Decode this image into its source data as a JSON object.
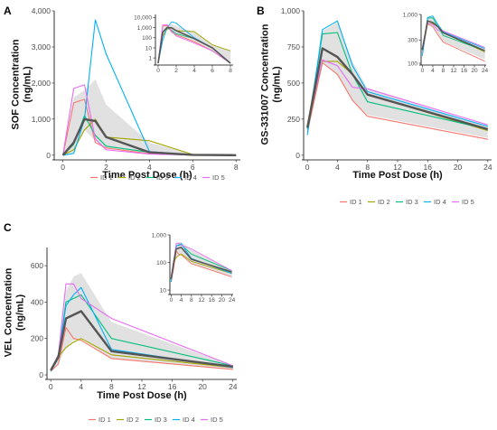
{
  "colors": {
    "ID 1": "#F8766D",
    "ID 2": "#A3A500",
    "ID 3": "#00BF7D",
    "ID 4": "#00B0F6",
    "ID 5": "#E76BF3",
    "median": "#555555",
    "band": "#d9d9d9"
  },
  "legend_entries": [
    "ID 1",
    "ID 2",
    "ID 3",
    "ID 4",
    "ID 5"
  ],
  "chart_data": [
    {
      "panel": "A",
      "type": "line",
      "xlabel": "Time Post Dose (h)",
      "ylabel": "SOF Concentration\n(ng/mL)",
      "xlim": [
        -0.4,
        8.2
      ],
      "ylim": [
        -80,
        4000
      ],
      "xticks": [
        "0",
        "2",
        "4",
        "6",
        "8"
      ],
      "yticks": [
        "0",
        "1,000",
        "2,000",
        "3,000",
        "4,000"
      ],
      "grid": false,
      "legend": "bottom",
      "series": [
        {
          "name": "ID 1",
          "x": [
            0,
            0.5,
            1,
            1.5,
            2,
            4,
            6,
            8
          ],
          "y": [
            0,
            1450,
            1550,
            350,
            200,
            40,
            5,
            0
          ]
        },
        {
          "name": "ID 2",
          "x": [
            0,
            0.5,
            1,
            1.5,
            2,
            4,
            6,
            8
          ],
          "y": [
            0,
            150,
            700,
            1000,
            500,
            400,
            20,
            5
          ]
        },
        {
          "name": "ID 3",
          "x": [
            0,
            0.5,
            1,
            1.5,
            2,
            4,
            6,
            8
          ],
          "y": [
            0,
            300,
            1100,
            550,
            250,
            80,
            10,
            0
          ]
        },
        {
          "name": "ID 4",
          "x": [
            0,
            0.5,
            1,
            1.5,
            2,
            4,
            6,
            8
          ],
          "y": [
            0,
            50,
            1000,
            3750,
            2800,
            100,
            10,
            0
          ]
        },
        {
          "name": "ID 5",
          "x": [
            0,
            0.5,
            1,
            1.5,
            2,
            4,
            6,
            8
          ],
          "y": [
            0,
            1850,
            1950,
            450,
            150,
            30,
            5,
            0
          ]
        }
      ],
      "median": {
        "x": [
          0,
          0.5,
          1,
          1.5,
          2,
          4,
          6,
          8
        ],
        "y": [
          0,
          350,
          1000,
          950,
          500,
          80,
          10,
          0
        ]
      },
      "band": {
        "x": [
          0,
          0.5,
          1,
          1.5,
          2,
          4,
          6,
          8
        ],
        "lo": [
          0,
          80,
          700,
          400,
          200,
          40,
          5,
          0
        ],
        "hi": [
          0,
          1600,
          1800,
          2100,
          1400,
          350,
          20,
          5
        ]
      },
      "inset": {
        "xlim": [
          -0.3,
          8.3
        ],
        "ylog": true,
        "ylim": [
          0.3,
          20000
        ],
        "xticks": [
          "0",
          "2",
          "4",
          "6",
          "8"
        ],
        "yticks": [
          "1",
          "10",
          "100",
          "1,000",
          "10,000"
        ],
        "ytick_values": [
          1,
          10,
          100,
          1000,
          10000
        ]
      }
    },
    {
      "panel": "B",
      "type": "line",
      "xlabel": "Time Post Dose (h)",
      "ylabel": "GS-331007 Concentration\n(ng/mL)",
      "xlim": [
        -0.5,
        24.5
      ],
      "ylim": [
        -20,
        1000
      ],
      "xticks": [
        "0",
        "4",
        "8",
        "12",
        "16",
        "20",
        "24"
      ],
      "yticks": [
        "0",
        "250",
        "500",
        "750",
        "1,000"
      ],
      "grid": false,
      "legend": "bottom",
      "series": [
        {
          "name": "ID 1",
          "x": [
            0,
            2,
            4,
            6,
            8,
            24
          ],
          "y": [
            160,
            640,
            560,
            380,
            270,
            110
          ]
        },
        {
          "name": "ID 2",
          "x": [
            0,
            2,
            4,
            6,
            8,
            24
          ],
          "y": [
            200,
            650,
            650,
            560,
            420,
            170
          ]
        },
        {
          "name": "ID 3",
          "x": [
            0,
            2,
            4,
            6,
            8,
            24
          ],
          "y": [
            180,
            840,
            850,
            560,
            370,
            180
          ]
        },
        {
          "name": "ID 4",
          "x": [
            0,
            2,
            4,
            6,
            8,
            24
          ],
          "y": [
            140,
            870,
            930,
            620,
            440,
            200
          ]
        },
        {
          "name": "ID 5",
          "x": [
            0,
            2,
            4,
            6,
            8,
            24
          ],
          "y": [
            200,
            660,
            620,
            470,
            460,
            210
          ]
        }
      ],
      "median": {
        "x": [
          0,
          2,
          4,
          6,
          8,
          24
        ],
        "y": [
          190,
          740,
          680,
          560,
          420,
          180
        ]
      },
      "band": {
        "x": [
          0,
          2,
          4,
          6,
          8,
          24
        ],
        "lo": [
          150,
          640,
          560,
          380,
          280,
          120
        ],
        "hi": [
          220,
          860,
          920,
          650,
          460,
          200
        ]
      },
      "inset": {
        "xlim": [
          -0.5,
          24.5
        ],
        "ylog": true,
        "ylim": [
          100,
          1000
        ],
        "xticks": [
          "0",
          "4",
          "8",
          "12",
          "16",
          "20",
          "24"
        ],
        "yticks": [
          "100",
          "300",
          "1,000"
        ],
        "ytick_values": [
          100,
          300,
          1000
        ]
      }
    },
    {
      "panel": "C",
      "type": "line",
      "xlabel": "Time Post Dose (h)",
      "ylabel": "VEL Concentration\n(ng/mL)",
      "xlim": [
        -0.5,
        24.5
      ],
      "ylim": [
        -15,
        700
      ],
      "xticks": [
        "0",
        "4",
        "8",
        "12",
        "16",
        "20",
        "24"
      ],
      "yticks": [
        "0",
        "200",
        "400",
        "600"
      ],
      "grid": false,
      "legend": "bottom",
      "series": [
        {
          "name": "ID 1",
          "x": [
            0,
            1,
            2,
            3,
            4,
            8,
            24
          ],
          "y": [
            20,
            60,
            260,
            200,
            190,
            90,
            30
          ]
        },
        {
          "name": "ID 2",
          "x": [
            0,
            1,
            2,
            3,
            4,
            8,
            24
          ],
          "y": [
            30,
            100,
            150,
            180,
            200,
            110,
            40
          ]
        },
        {
          "name": "ID 3",
          "x": [
            0,
            1,
            2,
            3,
            4,
            8,
            24
          ],
          "y": [
            20,
            90,
            400,
            420,
            440,
            200,
            50
          ]
        },
        {
          "name": "ID 4",
          "x": [
            0,
            1,
            2,
            3,
            4,
            8,
            24
          ],
          "y": [
            20,
            110,
            380,
            440,
            480,
            140,
            40
          ]
        },
        {
          "name": "ID 5",
          "x": [
            0,
            1,
            2,
            3,
            4,
            8,
            24
          ],
          "y": [
            30,
            110,
            500,
            500,
            420,
            310,
            50
          ]
        }
      ],
      "median": {
        "x": [
          0,
          1,
          2,
          3,
          4,
          8,
          24
        ],
        "y": [
          25,
          100,
          310,
          330,
          350,
          130,
          45
        ]
      },
      "band": {
        "x": [
          0,
          1,
          2,
          3,
          4,
          8,
          24
        ],
        "lo": [
          20,
          60,
          150,
          190,
          200,
          90,
          30
        ],
        "hi": [
          30,
          110,
          460,
          540,
          560,
          290,
          50
        ]
      },
      "inset": {
        "xlim": [
          -0.5,
          24.5
        ],
        "ylog": true,
        "ylim": [
          8,
          1000
        ],
        "xticks": [
          "0",
          "4",
          "8",
          "12",
          "16",
          "20",
          "24"
        ],
        "yticks": [
          "10",
          "100",
          "1,000"
        ],
        "ytick_values": [
          10,
          100,
          1000
        ]
      }
    }
  ]
}
